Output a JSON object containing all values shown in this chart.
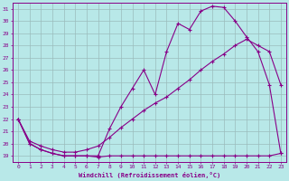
{
  "background_color": "#b8e8e8",
  "grid_color": "#9bbcbc",
  "line_color": "#880088",
  "xlim": [
    -0.5,
    23.5
  ],
  "ylim": [
    18.5,
    31.5
  ],
  "yticks": [
    19,
    20,
    21,
    22,
    23,
    24,
    25,
    26,
    27,
    28,
    29,
    30,
    31
  ],
  "xticks": [
    0,
    1,
    2,
    3,
    4,
    5,
    6,
    7,
    8,
    9,
    10,
    11,
    12,
    13,
    14,
    15,
    16,
    17,
    18,
    19,
    20,
    21,
    22,
    23
  ],
  "xlabel": "Windchill (Refroidissement éolien,°C)",
  "curve1_x": [
    0,
    1,
    2,
    3,
    4,
    5,
    6,
    7,
    8,
    9,
    10,
    11,
    12,
    13,
    14,
    15,
    16,
    17,
    18,
    19,
    20,
    21,
    22,
    23
  ],
  "curve1_y": [
    22,
    20,
    19.5,
    19.2,
    19.0,
    19.0,
    19.0,
    18.9,
    19.0,
    19.0,
    19.0,
    19.0,
    19.0,
    19.0,
    19.0,
    19.0,
    19.0,
    19.0,
    19.0,
    19.0,
    19.0,
    19.0,
    19.0,
    19.2
  ],
  "curve2_x": [
    0,
    1,
    2,
    3,
    4,
    5,
    6,
    7,
    8,
    9,
    10,
    11,
    12,
    13,
    14,
    15,
    16,
    17,
    18,
    19,
    20,
    21,
    22,
    23
  ],
  "curve2_y": [
    22.0,
    20.2,
    19.8,
    19.5,
    19.3,
    19.3,
    19.5,
    19.8,
    20.5,
    21.3,
    22.0,
    22.7,
    23.3,
    23.8,
    24.5,
    25.2,
    26.0,
    26.7,
    27.3,
    28.0,
    28.5,
    28.0,
    27.5,
    24.8
  ],
  "curve3_x": [
    0,
    1,
    2,
    3,
    4,
    5,
    6,
    7,
    8,
    9,
    10,
    11,
    12,
    13,
    14,
    15,
    16,
    17,
    18,
    19,
    20,
    21,
    22,
    23
  ],
  "curve3_y": [
    22.0,
    20.0,
    19.5,
    19.2,
    19.0,
    19.0,
    19.0,
    19.0,
    21.2,
    23.0,
    24.5,
    26.0,
    24.0,
    27.5,
    29.8,
    29.3,
    30.8,
    31.2,
    31.1,
    30.0,
    28.7,
    27.5,
    24.8,
    19.2
  ]
}
